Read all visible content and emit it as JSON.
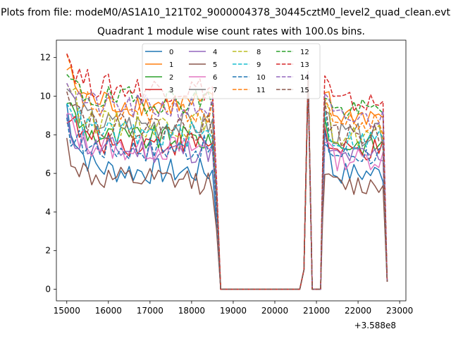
{
  "chart_data": {
    "type": "line",
    "suptitle": "Plots from file: modeM0/AS1A10_121T02_9000004378_30445cztM0_level2_quad_clean.evt",
    "title": "Quadrant 1 module wise count rates with 100.0s bins.",
    "xlabel": "",
    "ylabel": "",
    "x_offset_label": "+3.588e8",
    "xlim": [
      14750,
      23150
    ],
    "ylim": [
      -0.6,
      12.9
    ],
    "xticks": [
      15000,
      16000,
      17000,
      18000,
      19000,
      20000,
      21000,
      22000,
      23000
    ],
    "yticks": [
      0,
      2,
      4,
      6,
      8,
      10,
      12
    ],
    "legend_position": "top-center",
    "colors": [
      "#1f77b4",
      "#ff7f0e",
      "#2ca02c",
      "#d62728",
      "#9467bd",
      "#8c564b",
      "#e377c2",
      "#7f7f7f",
      "#bcbd22",
      "#17becf"
    ],
    "series": [
      {
        "name": "0",
        "style": "solid",
        "start": 9.5,
        "base": 6.1,
        "gap_level": 6.0,
        "tail": 6.0
      },
      {
        "name": "1",
        "style": "solid",
        "start": 11.5,
        "base": 9.6,
        "gap_level": 9.0,
        "tail": 9.0
      },
      {
        "name": "2",
        "style": "solid",
        "start": 10.0,
        "base": 7.8,
        "gap_level": 7.5,
        "tail": 7.5
      },
      {
        "name": "3",
        "style": "solid",
        "start": 9.2,
        "base": 7.6,
        "gap_level": 7.0,
        "tail": 7.2
      },
      {
        "name": "4",
        "style": "solid",
        "start": 8.5,
        "base": 7.2,
        "gap_level": 6.8,
        "tail": 7.0
      },
      {
        "name": "5",
        "style": "solid",
        "start": 7.5,
        "base": 5.6,
        "gap_level": 5.3,
        "tail": 5.4
      },
      {
        "name": "6",
        "style": "solid",
        "start": 9.0,
        "base": 7.3,
        "gap_level": 6.7,
        "tail": 6.8
      },
      {
        "name": "7",
        "style": "solid",
        "start": 10.5,
        "base": 8.5,
        "gap_level": 8.0,
        "tail": 8.0
      },
      {
        "name": "8",
        "style": "dashed",
        "start": 11.0,
        "base": 8.5,
        "gap_level": 7.9,
        "tail": 8.0
      },
      {
        "name": "9",
        "style": "dashed",
        "start": 10.2,
        "base": 8.0,
        "gap_level": 7.6,
        "tail": 7.8
      },
      {
        "name": "10",
        "style": "dashed",
        "start": 8.3,
        "base": 7.3,
        "gap_level": 7.0,
        "tail": 7.0
      },
      {
        "name": "11",
        "style": "dashed",
        "start": 11.8,
        "base": 9.2,
        "gap_level": 8.6,
        "tail": 8.5
      },
      {
        "name": "12",
        "style": "dashed",
        "start": 11.0,
        "base": 9.8,
        "gap_level": 9.2,
        "tail": 9.3
      },
      {
        "name": "13",
        "style": "dashed",
        "start": 12.3,
        "base": 10.4,
        "gap_level": 9.7,
        "tail": 9.6
      },
      {
        "name": "14",
        "style": "dashed",
        "start": 11.0,
        "base": 9.4,
        "gap_level": 8.8,
        "tail": 8.8
      },
      {
        "name": "15",
        "style": "dashed",
        "start": 10.8,
        "base": 8.4,
        "gap_level": 7.9,
        "tail": 8.0
      }
    ],
    "segments": {
      "active1": [
        15000,
        18500
      ],
      "drop_end": 18700,
      "zero1": [
        18700,
        20600
      ],
      "spike": [
        20700,
        20900
      ],
      "zero2": [
        20950,
        21100
      ],
      "active2": [
        21200,
        22600
      ],
      "end": 22700,
      "end_value": 0.4,
      "spike_value": 11.0
    }
  }
}
